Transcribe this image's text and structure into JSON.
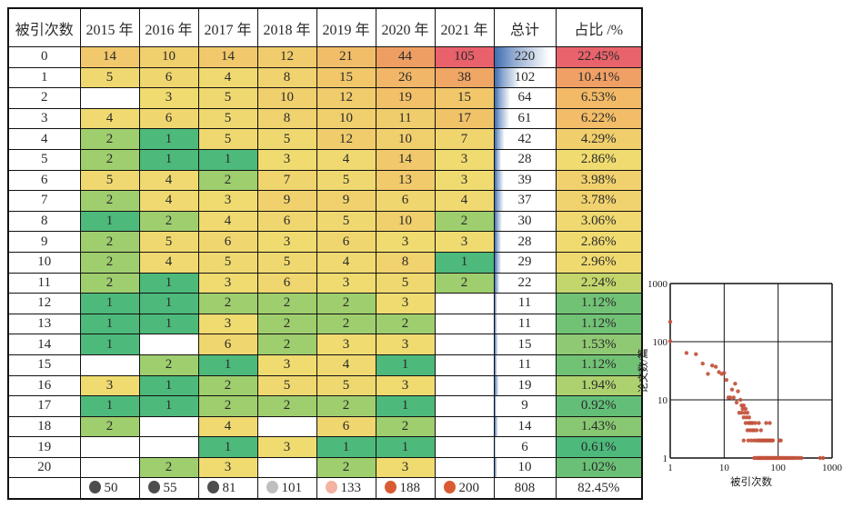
{
  "chart_data": [
    {
      "type": "table",
      "columns": [
        "被引次数",
        "2015 年",
        "2016 年",
        "2017 年",
        "2018 年",
        "2019 年",
        "2020 年",
        "2021 年",
        "总计",
        "占比 /%"
      ],
      "rows": [
        {
          "count": "0",
          "values": [
            14,
            10,
            14,
            12,
            21,
            44,
            105
          ],
          "total": 220,
          "pct": 22.45,
          "pct_label": "22.45%"
        },
        {
          "count": "1",
          "values": [
            5,
            6,
            4,
            8,
            15,
            26,
            38
          ],
          "total": 102,
          "pct": 10.41,
          "pct_label": "10.41%"
        },
        {
          "count": "2",
          "values": [
            null,
            3,
            5,
            10,
            12,
            19,
            15
          ],
          "total": 64,
          "pct": 6.53,
          "pct_label": "6.53%"
        },
        {
          "count": "3",
          "values": [
            4,
            6,
            5,
            8,
            10,
            11,
            17
          ],
          "total": 61,
          "pct": 6.22,
          "pct_label": "6.22%"
        },
        {
          "count": "4",
          "values": [
            2,
            1,
            5,
            5,
            12,
            10,
            7
          ],
          "total": 42,
          "pct": 4.29,
          "pct_label": "4.29%"
        },
        {
          "count": "5",
          "values": [
            2,
            1,
            1,
            3,
            4,
            14,
            3
          ],
          "total": 28,
          "pct": 2.86,
          "pct_label": "2.86%"
        },
        {
          "count": "6",
          "values": [
            5,
            4,
            2,
            7,
            5,
            13,
            3
          ],
          "total": 39,
          "pct": 3.98,
          "pct_label": "3.98%"
        },
        {
          "count": "7",
          "values": [
            2,
            4,
            3,
            9,
            9,
            6,
            4
          ],
          "total": 37,
          "pct": 3.78,
          "pct_label": "3.78%"
        },
        {
          "count": "8",
          "values": [
            1,
            2,
            4,
            6,
            5,
            10,
            2
          ],
          "total": 30,
          "pct": 3.06,
          "pct_label": "3.06%"
        },
        {
          "count": "9",
          "values": [
            2,
            5,
            6,
            3,
            6,
            3,
            3
          ],
          "total": 28,
          "pct": 2.86,
          "pct_label": "2.86%"
        },
        {
          "count": "10",
          "values": [
            2,
            4,
            5,
            5,
            4,
            8,
            1
          ],
          "total": 29,
          "pct": 2.96,
          "pct_label": "2.96%"
        },
        {
          "count": "11",
          "values": [
            2,
            1,
            3,
            6,
            3,
            5,
            2
          ],
          "total": 22,
          "pct": 2.24,
          "pct_label": "2.24%"
        },
        {
          "count": "12",
          "values": [
            1,
            1,
            2,
            2,
            2,
            3,
            null
          ],
          "total": 11,
          "pct": 1.12,
          "pct_label": "1.12%"
        },
        {
          "count": "13",
          "values": [
            1,
            1,
            3,
            2,
            2,
            2,
            null
          ],
          "total": 11,
          "pct": 1.12,
          "pct_label": "1.12%"
        },
        {
          "count": "14",
          "values": [
            1,
            null,
            6,
            2,
            3,
            3,
            null
          ],
          "total": 15,
          "pct": 1.53,
          "pct_label": "1.53%"
        },
        {
          "count": "15",
          "values": [
            null,
            2,
            1,
            3,
            4,
            1,
            null
          ],
          "total": 11,
          "pct": 1.12,
          "pct_label": "1.12%"
        },
        {
          "count": "16",
          "values": [
            3,
            1,
            2,
            5,
            5,
            3,
            null
          ],
          "total": 19,
          "pct": 1.94,
          "pct_label": "1.94%"
        },
        {
          "count": "17",
          "values": [
            1,
            1,
            2,
            2,
            2,
            1,
            null
          ],
          "total": 9,
          "pct": 0.92,
          "pct_label": "0.92%"
        },
        {
          "count": "18",
          "values": [
            2,
            null,
            4,
            null,
            6,
            2,
            null
          ],
          "total": 14,
          "pct": 1.43,
          "pct_label": "1.43%"
        },
        {
          "count": "19",
          "values": [
            null,
            null,
            1,
            3,
            1,
            1,
            null
          ],
          "total": 6,
          "pct": 0.61,
          "pct_label": "0.61%"
        },
        {
          "count": "20",
          "values": [
            null,
            2,
            3,
            null,
            2,
            3,
            null
          ],
          "total": 10,
          "pct": 1.02,
          "pct_label": "1.02%"
        }
      ],
      "footer": {
        "count": "",
        "circles": [
          {
            "value": 50,
            "color": "#4D4D4D"
          },
          {
            "value": 55,
            "color": "#4D4D4D"
          },
          {
            "value": 81,
            "color": "#4D4D4D"
          },
          {
            "value": 101,
            "color": "#BFBFBF"
          },
          {
            "value": 133,
            "color": "#F2B3A2"
          },
          {
            "value": 188,
            "color": "#D95B33"
          },
          {
            "value": 200,
            "color": "#D95B33"
          }
        ],
        "total": 808,
        "pct_label": "82.45%"
      }
    },
    {
      "type": "scatter",
      "xlabel": "被引次数",
      "ylabel": "论文数/篇",
      "x_scale": "log",
      "y_scale": "log",
      "xlim": [
        1,
        1000
      ],
      "ylim": [
        1,
        1000
      ],
      "x_ticks": [
        1,
        10,
        100,
        1000
      ],
      "y_ticks": [
        1,
        10,
        100,
        1000
      ],
      "grid": true,
      "points": [
        [
          1,
          220
        ],
        [
          1,
          102
        ],
        [
          2,
          64
        ],
        [
          3,
          61
        ],
        [
          4,
          42
        ],
        [
          5,
          28
        ],
        [
          6,
          39
        ],
        [
          7,
          37
        ],
        [
          8,
          30
        ],
        [
          9,
          28
        ],
        [
          10,
          29
        ],
        [
          11,
          22
        ],
        [
          12,
          11
        ],
        [
          13,
          11
        ],
        [
          14,
          15
        ],
        [
          15,
          11
        ],
        [
          16,
          19
        ],
        [
          17,
          9
        ],
        [
          18,
          14
        ],
        [
          19,
          6
        ],
        [
          20,
          10
        ],
        [
          21,
          8
        ],
        [
          21,
          6
        ],
        [
          22,
          7
        ],
        [
          23,
          8
        ],
        [
          23,
          5
        ],
        [
          24,
          6
        ],
        [
          25,
          7
        ],
        [
          25,
          4
        ],
        [
          26,
          5
        ],
        [
          27,
          6
        ],
        [
          27,
          3
        ],
        [
          28,
          4
        ],
        [
          29,
          5
        ],
        [
          30,
          4
        ],
        [
          30,
          3
        ],
        [
          32,
          4
        ],
        [
          33,
          3
        ],
        [
          34,
          4
        ],
        [
          36,
          3
        ],
        [
          38,
          4
        ],
        [
          40,
          3
        ],
        [
          44,
          4
        ],
        [
          48,
          3
        ],
        [
          60,
          4
        ],
        [
          70,
          4
        ],
        [
          23,
          2
        ],
        [
          28,
          2
        ],
        [
          32,
          2
        ],
        [
          36,
          2
        ],
        [
          40,
          2
        ],
        [
          43,
          2
        ],
        [
          46,
          2
        ],
        [
          49,
          2
        ],
        [
          52,
          2
        ],
        [
          55,
          2
        ],
        [
          58,
          2
        ],
        [
          61,
          2
        ],
        [
          64,
          2
        ],
        [
          68,
          2
        ],
        [
          72,
          2
        ],
        [
          76,
          2
        ],
        [
          80,
          2
        ],
        [
          105,
          2
        ],
        [
          112,
          2
        ],
        [
          36,
          1
        ],
        [
          39,
          1
        ],
        [
          42,
          1
        ],
        [
          44,
          1
        ],
        [
          46,
          1
        ],
        [
          48,
          1
        ],
        [
          50,
          1
        ],
        [
          52,
          1
        ],
        [
          55,
          1
        ],
        [
          58,
          1
        ],
        [
          61,
          1
        ],
        [
          64,
          1
        ],
        [
          67,
          1
        ],
        [
          70,
          1
        ],
        [
          74,
          1
        ],
        [
          78,
          1
        ],
        [
          82,
          1
        ],
        [
          86,
          1
        ],
        [
          90,
          1
        ],
        [
          95,
          1
        ],
        [
          100,
          1
        ],
        [
          106,
          1
        ],
        [
          113,
          1
        ],
        [
          120,
          1
        ],
        [
          128,
          1
        ],
        [
          137,
          1
        ],
        [
          147,
          1
        ],
        [
          158,
          1
        ],
        [
          170,
          1
        ],
        [
          185,
          1
        ],
        [
          200,
          1
        ],
        [
          220,
          1
        ],
        [
          245,
          1
        ],
        [
          270,
          1
        ],
        [
          600,
          1
        ],
        [
          680,
          1
        ]
      ]
    }
  ],
  "style": {
    "value_color_anchors": [
      [
        1,
        "#4DB97B"
      ],
      [
        2,
        "#9FCE6E"
      ],
      [
        3,
        "#EFDB70"
      ],
      [
        20,
        "#F2BE68"
      ],
      [
        44,
        "#EF9E63"
      ],
      [
        105,
        "#E8616B"
      ]
    ],
    "pct_color_anchors": [
      [
        0.61,
        "#4DB97B"
      ],
      [
        2.24,
        "#C3D66C"
      ],
      [
        2.86,
        "#EFDB70"
      ],
      [
        6.5,
        "#F2B967"
      ],
      [
        10.41,
        "#F0A065"
      ],
      [
        22.45,
        "#E8636B"
      ]
    ],
    "bar_color_dark": "#3E6DAE",
    "bar_color_light": "#8FA9D0",
    "bar_max": 220,
    "dot_color": "#C2523C",
    "grid_color": "#111111"
  }
}
